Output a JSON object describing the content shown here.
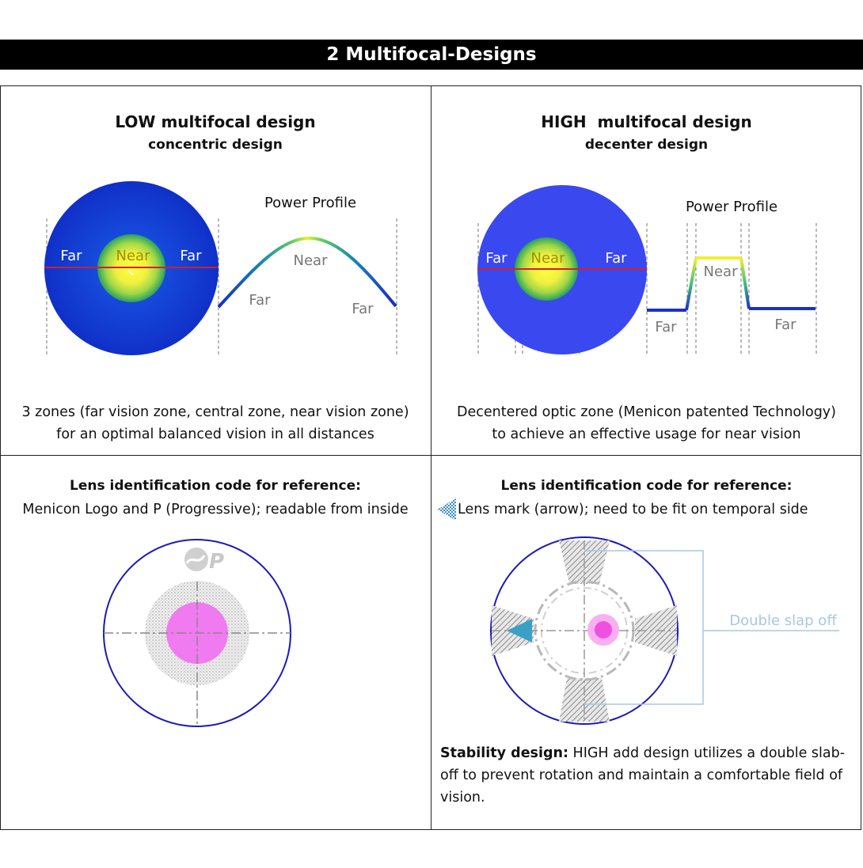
{
  "title": "2 Multifocal-Designs",
  "low": {
    "heading": "LOW multifocal design",
    "subheading": "concentric design",
    "lens_labels": {
      "far_left": "Far",
      "near": "Near",
      "far_right": "Far"
    },
    "profile": {
      "title": "Power Profile",
      "near": "Near",
      "far_left": "Far",
      "far_right": "Far"
    },
    "description_line1": "3 zones (far vision zone, central zone, near vision zone)",
    "description_line2": "for an optimal balanced vision in all distances",
    "id_heading": "Lens identification code for reference:",
    "id_text": "Menicon Logo and P (Progressive); readable from inside"
  },
  "high": {
    "heading": "HIGH  multifocal design",
    "subheading": "decenter design",
    "lens_labels": {
      "far_left": "Far",
      "near": "Near",
      "far_right": "Far"
    },
    "profile": {
      "title": "Power Profile",
      "near": "Near",
      "far_left": "Far",
      "far_right": "Far"
    },
    "description_line1": "Decentered optic zone (Menicon patented Technology)",
    "description_line2": "to achieve an effective usage for near vision",
    "id_heading": "Lens identification code for reference:",
    "id_text": "Lens mark (arrow); need to be fit on temporal side",
    "slab_label": "Double slap off",
    "stability_bold": "Stability design:",
    "stability_text": " HIGH add design utilizes a double slab-off to prevent rotation and maintain a comfortable field of vision."
  },
  "colors": {
    "far": "#1a3fd8",
    "near": "#ffff33",
    "meridian": "#d02030",
    "lens_outline": "#1a1ab8",
    "pink": "#f07af0",
    "slab": "#a8c8e0",
    "arrow": "#3aa0c8"
  }
}
